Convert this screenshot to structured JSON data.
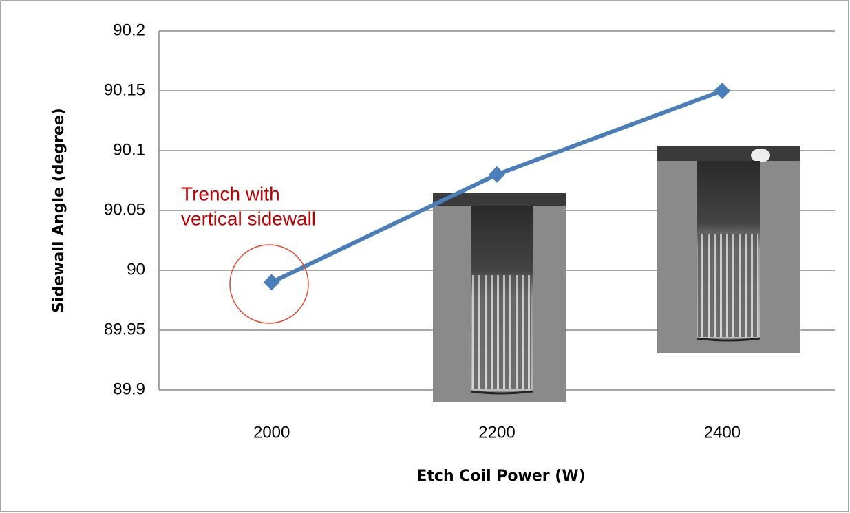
{
  "chart_data": {
    "type": "line",
    "categories": [
      "2000",
      "2200",
      "2400"
    ],
    "values": [
      89.99,
      90.08,
      90.15
    ],
    "color": "#4a7ebb",
    "ylim": [
      89.9,
      90.2
    ],
    "yticks": [
      89.9,
      89.95,
      90,
      90.05,
      90.1,
      90.15,
      90.2
    ],
    "grid": true,
    "x_label": "Etch Coil Power (W)",
    "y_label": "Sidewall Angle (degree)",
    "annotation": [
      "Trench with",
      "vertical sidewall"
    ]
  }
}
